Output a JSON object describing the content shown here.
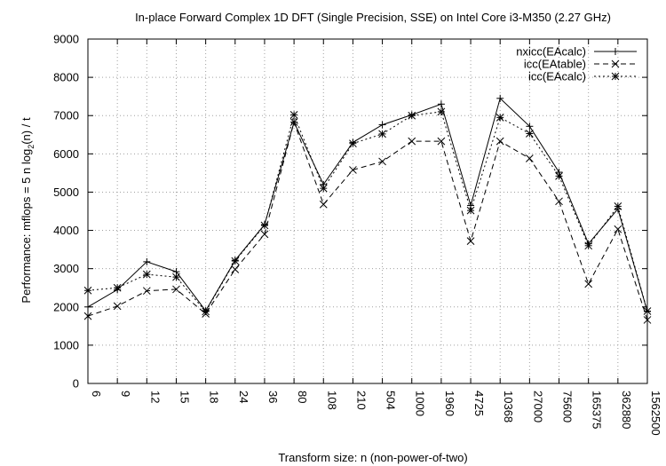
{
  "chart_data": {
    "type": "line",
    "title": "In-place Forward Complex 1D DFT (Single Precision, SSE) on Intel Core i3-M350 (2.27 GHz)",
    "xlabel": "Transform size: n (non-power-of-two)",
    "ylabel": "Performance: mflops = 5 n log2(n) / t",
    "ylabel_parts": {
      "pre": "Performance: mflops = 5 n log",
      "sub": "2",
      "post": "(n) / t"
    },
    "ylim": [
      0,
      9000
    ],
    "yticks": [
      "0",
      "1000",
      "2000",
      "3000",
      "4000",
      "5000",
      "6000",
      "7000",
      "8000",
      "9000"
    ],
    "categories": [
      "6",
      "9",
      "12",
      "15",
      "18",
      "24",
      "36",
      "80",
      "108",
      "210",
      "504",
      "1000",
      "1960",
      "4725",
      "10368",
      "27000",
      "75600",
      "165375",
      "362880",
      "1562500"
    ],
    "grid": true,
    "legend_position": "top-right",
    "series": [
      {
        "name": "nxicc(EAcalc)",
        "marker": "plus",
        "dash": "solid",
        "values": [
          2000,
          2450,
          3180,
          2920,
          1900,
          3220,
          4150,
          6830,
          5200,
          6300,
          6760,
          7020,
          7300,
          4650,
          7450,
          6720,
          5520,
          3650,
          4560,
          1880
        ]
      },
      {
        "name": "icc(EAtable)",
        "marker": "cross",
        "dash": "dashed",
        "values": [
          1760,
          2020,
          2420,
          2460,
          1820,
          2980,
          3900,
          6830,
          4680,
          5580,
          5800,
          6330,
          6330,
          3720,
          6330,
          5880,
          4760,
          2600,
          4030,
          1660
        ]
      },
      {
        "name": "icc(EAcalc)",
        "marker": "star",
        "dash": "dotted",
        "values": [
          2430,
          2500,
          2850,
          2780,
          1880,
          3200,
          4130,
          7020,
          5100,
          6270,
          6520,
          7000,
          7100,
          4520,
          6950,
          6530,
          5420,
          3600,
          4630,
          1890
        ]
      }
    ]
  }
}
